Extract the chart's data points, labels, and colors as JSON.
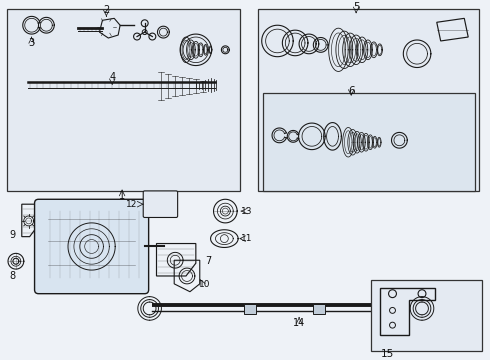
{
  "bg_color": "#eef2f7",
  "line_color": "#1a1a1a",
  "box_fill": "#e4eaf2",
  "box_edge": "#333333",
  "figsize": [
    4.9,
    3.6
  ],
  "dpi": 100
}
